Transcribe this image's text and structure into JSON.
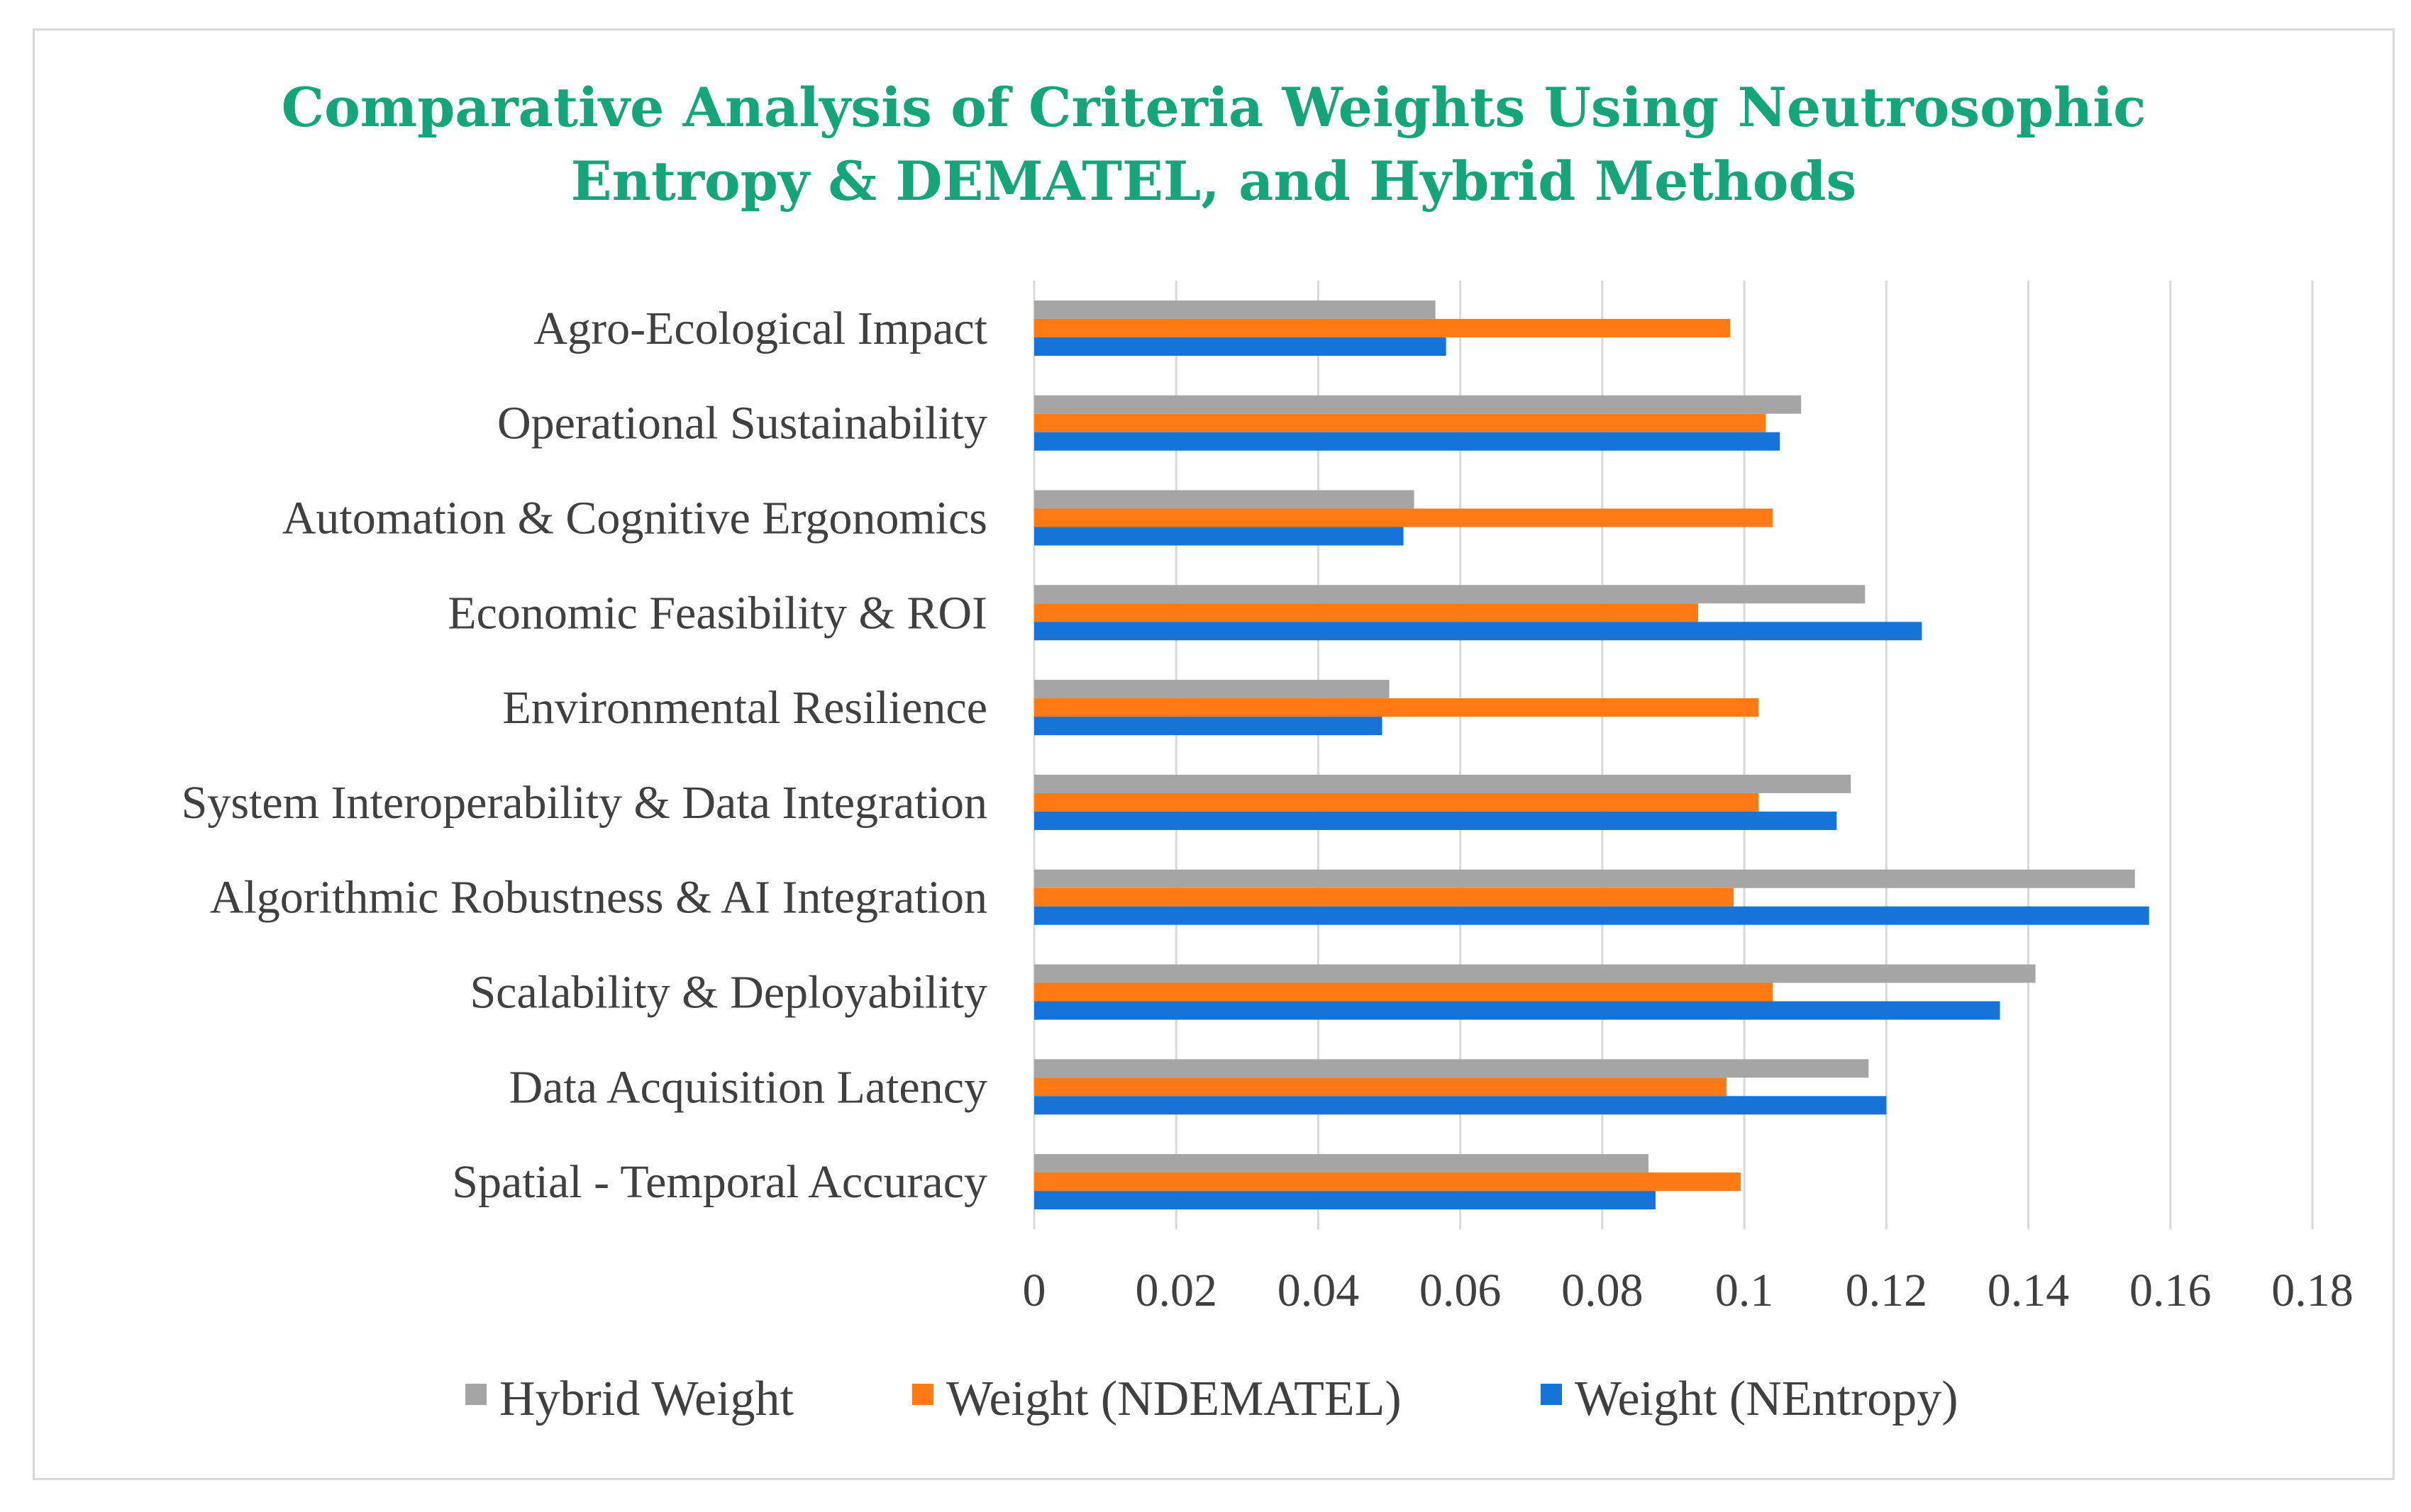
{
  "chart_data": {
    "type": "bar",
    "orientation": "horizontal",
    "title_lines": [
      "Comparative Analysis of Criteria Weights Using Neutrosophic",
      "Entropy & DEMATEL, and Hybrid Methods"
    ],
    "categories": [
      "Agro-Ecological Impact",
      "Operational Sustainability",
      "Automation & Cognitive Ergonomics",
      "Economic Feasibility & ROI",
      "Environmental Resilience",
      "System Interoperability & Data Integration",
      "Algorithmic Robustness & AI Integration",
      "Scalability & Deployability",
      "Data Acquisition Latency",
      "Spatial - Temporal Accuracy"
    ],
    "series": [
      {
        "name": "Hybrid Weight",
        "color": "#a5a5a5",
        "values": [
          0.0565,
          0.108,
          0.0535,
          0.117,
          0.05,
          0.115,
          0.155,
          0.141,
          0.1175,
          0.0865
        ]
      },
      {
        "name": "Weight (NDEMATEL)",
        "color": "#ff7a12",
        "values": [
          0.098,
          0.103,
          0.104,
          0.0935,
          0.102,
          0.102,
          0.0985,
          0.104,
          0.0975,
          0.0995
        ]
      },
      {
        "name": "Weight (NEntropy)",
        "color": "#1673d8",
        "values": [
          0.058,
          0.105,
          0.052,
          0.125,
          0.049,
          0.113,
          0.157,
          0.136,
          0.12,
          0.0875
        ]
      }
    ],
    "x_ticks": [
      "0",
      "0.02",
      "0.04",
      "0.06",
      "0.08",
      "0.1",
      "0.12",
      "0.14",
      "0.16",
      "0.18"
    ],
    "xlim": [
      0,
      0.18
    ],
    "grid": "vertical",
    "legend": "bottom"
  }
}
